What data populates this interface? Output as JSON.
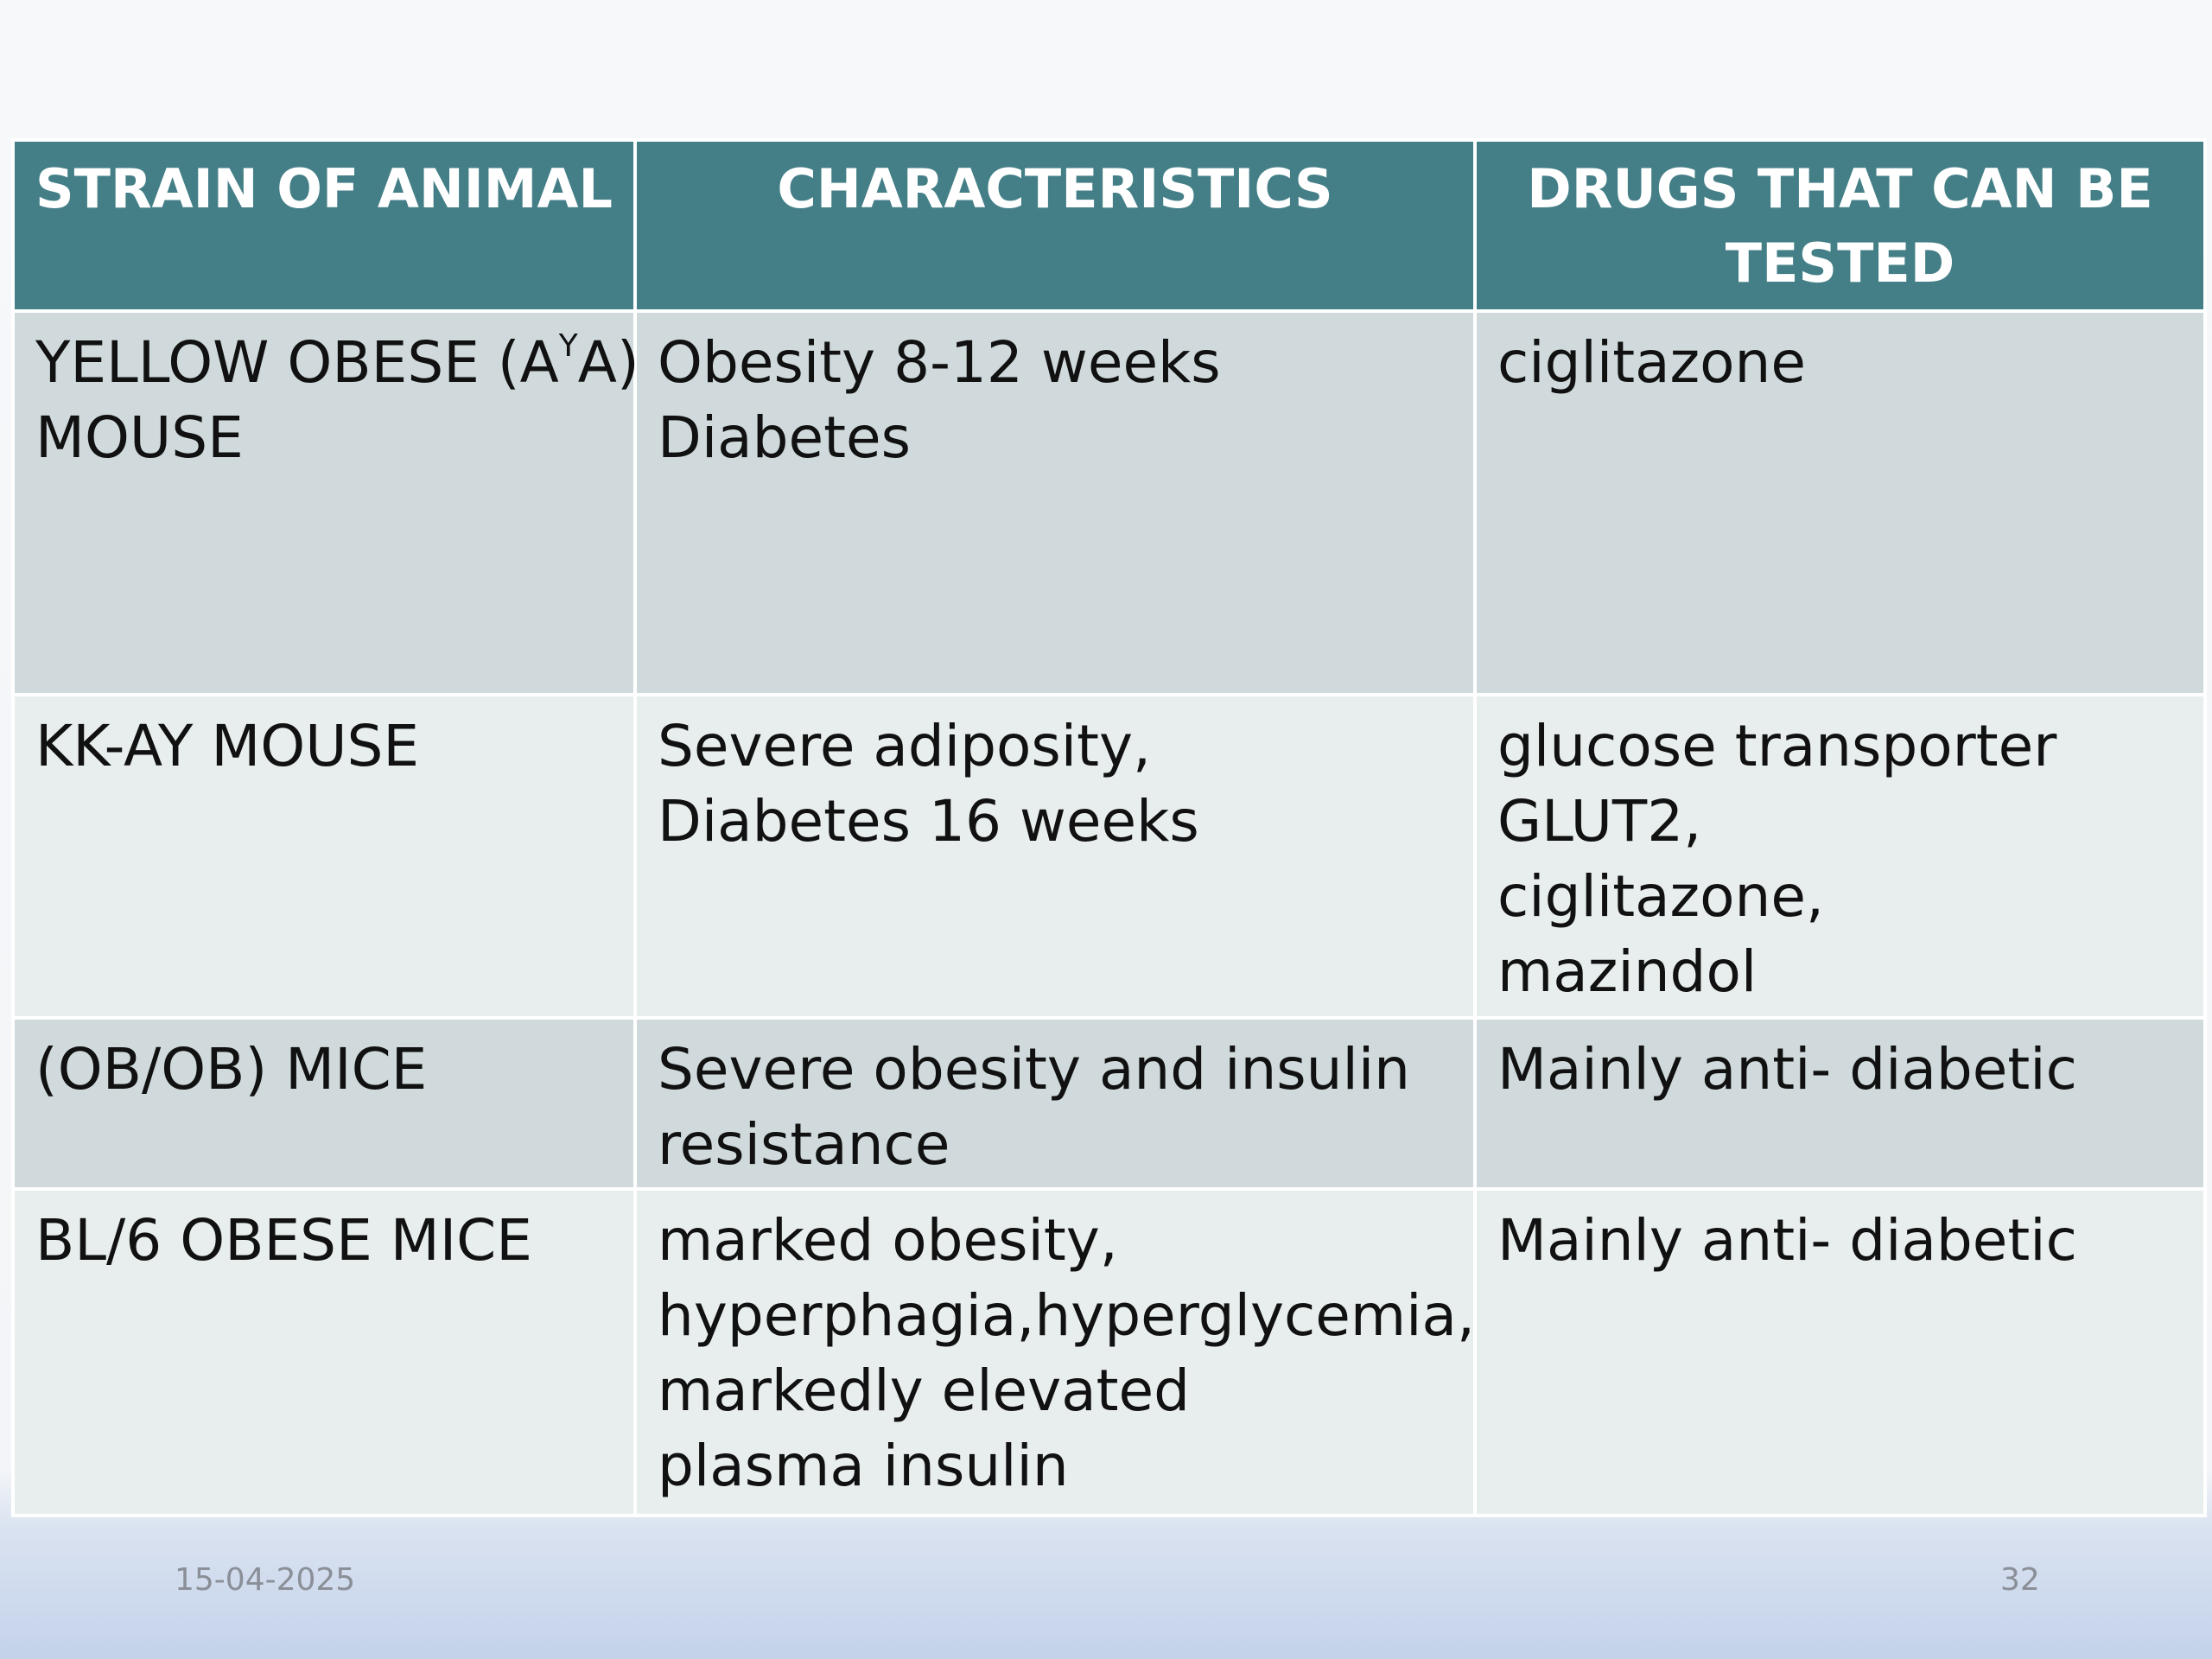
{
  "table": {
    "headers": [
      "STRAIN OF ANIMAL",
      "CHARACTERISTICS",
      "DRUGS THAT CAN BE TESTED"
    ],
    "header_lines": [
      [
        "STRAIN OF ANIMAL"
      ],
      [
        "CHARACTERISTICS"
      ],
      [
        "DRUGS THAT CAN BE",
        "TESTED"
      ]
    ],
    "rows": [
      {
        "strain_prefix": "YELLOW OBESE (A",
        "strain_sup": "Y",
        "strain_suffix": "A)",
        "strain_line2": "MOUSE",
        "characteristics": [
          "Obesity 8-12 weeks",
          "Diabetes"
        ],
        "drugs": [
          "ciglitazone"
        ]
      },
      {
        "strain": [
          "KK-AY MOUSE"
        ],
        "characteristics": [
          "Severe adiposity,",
          "Diabetes 16 weeks"
        ],
        "drugs": [
          "glucose transporter",
          "GLUT2,",
          "ciglitazone,",
          "mazindol"
        ]
      },
      {
        "strain": [
          "(OB/OB) MICE"
        ],
        "characteristics": [
          "Severe obesity and insulin",
          "resistance"
        ],
        "drugs": [
          "Mainly anti- diabetic"
        ]
      },
      {
        "strain": [
          "BL/6 OBESE MICE"
        ],
        "characteristics": [
          "marked obesity,",
          "hyperphagia,hyperglycemia,",
          "markedly elevated",
          "plasma insulin"
        ],
        "drugs": [
          "Mainly anti- diabetic"
        ]
      }
    ]
  },
  "footer": {
    "date": "15-04-2025",
    "page_number": "32"
  },
  "colors": {
    "header_bg": "#447f87",
    "header_text": "#ffffff",
    "row_dark_bg": "#d0dadc",
    "row_light_bg": "#e8eeee"
  }
}
